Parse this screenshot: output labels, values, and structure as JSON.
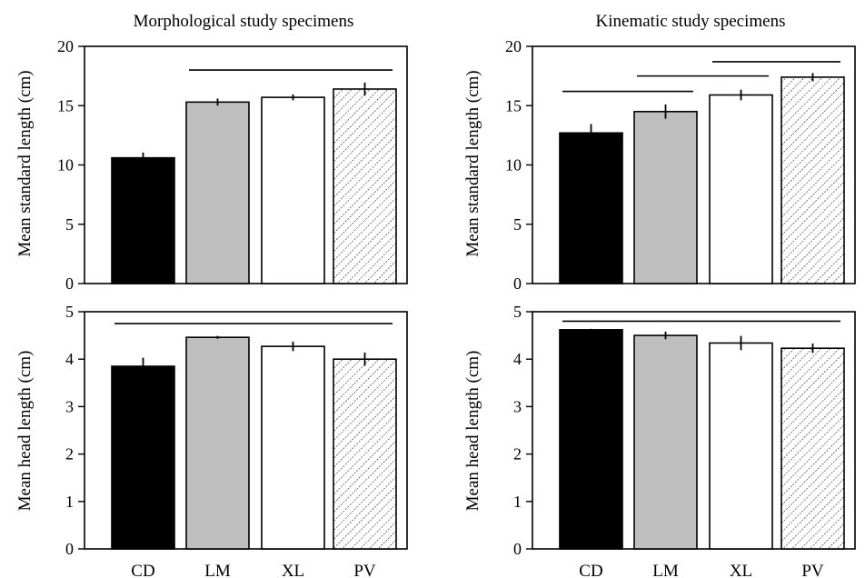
{
  "column_titles": {
    "left": "Morphological study specimens",
    "right": "Kinematic study specimens"
  },
  "axis_labels": {
    "top": "Mean standard length (cm)",
    "bottom": "Mean head length (cm)"
  },
  "colors": {
    "CD": "#000000",
    "LM": "#bfbfbf",
    "XL": "#ffffff",
    "PV": "hatched"
  },
  "chart_data": [
    {
      "type": "bar",
      "panel": "top-left",
      "categories": [
        "CD",
        "LM",
        "XL",
        "PV"
      ],
      "values": [
        10.6,
        15.3,
        15.7,
        16.4
      ],
      "errors": [
        0.45,
        0.3,
        0.25,
        0.55
      ],
      "ylabel": "Mean standard length (cm)",
      "ylim": [
        0,
        20
      ],
      "yticks": [
        0,
        5,
        10,
        15,
        20
      ],
      "significance_lines": [
        {
          "from": "LM",
          "to": "PV",
          "y": 18.0
        }
      ]
    },
    {
      "type": "bar",
      "panel": "top-right",
      "categories": [
        "CD",
        "LM",
        "XL",
        "PV"
      ],
      "values": [
        12.7,
        14.5,
        15.9,
        17.4
      ],
      "errors": [
        0.75,
        0.6,
        0.45,
        0.35
      ],
      "ylabel": "Mean standard length (cm)",
      "ylim": [
        0,
        20
      ],
      "yticks": [
        0,
        5,
        10,
        15,
        20
      ],
      "significance_lines": [
        {
          "from": "CD",
          "to": "LM",
          "y": 16.2
        },
        {
          "from": "LM",
          "to": "XL",
          "y": 17.5
        },
        {
          "from": "XL",
          "to": "PV",
          "y": 18.7
        }
      ]
    },
    {
      "type": "bar",
      "panel": "bottom-left",
      "categories": [
        "CD",
        "LM",
        "XL",
        "PV"
      ],
      "values": [
        3.85,
        4.46,
        4.27,
        4.0
      ],
      "errors": [
        0.18,
        0.03,
        0.1,
        0.14
      ],
      "ylabel": "Mean head length (cm)",
      "ylim": [
        0,
        5
      ],
      "yticks": [
        0,
        1,
        2,
        3,
        4,
        5
      ],
      "significance_lines": [
        {
          "from": "CD",
          "to": "PV",
          "y": 4.75
        }
      ]
    },
    {
      "type": "bar",
      "panel": "bottom-right",
      "categories": [
        "CD",
        "LM",
        "XL",
        "PV"
      ],
      "values": [
        4.62,
        4.5,
        4.34,
        4.23
      ],
      "errors": [
        0.02,
        0.08,
        0.15,
        0.1
      ],
      "ylabel": "Mean head length (cm)",
      "ylim": [
        0,
        5
      ],
      "yticks": [
        0,
        1,
        2,
        3,
        4,
        5
      ],
      "significance_lines": [
        {
          "from": "CD",
          "to": "PV",
          "y": 4.8
        }
      ]
    }
  ]
}
